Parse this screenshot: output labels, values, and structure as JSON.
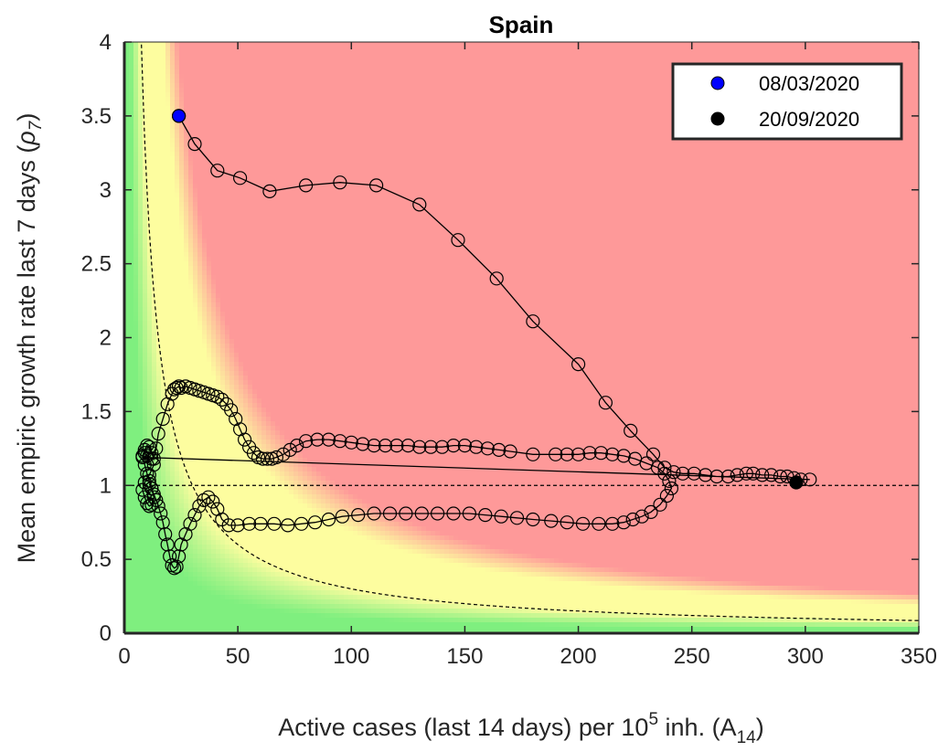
{
  "chart_data": {
    "type": "scatter",
    "title": "Spain",
    "xlabel": {
      "pre": "Active cases (last 14 days) per 10",
      "sup": "5",
      "mid": " inh. (A",
      "sub": "14",
      "post": ")"
    },
    "ylabel": {
      "pre": "Mean empiric growth rate last 7 days (",
      "greek": "ρ",
      "sub": "7",
      "post": ")"
    },
    "xlim": [
      0,
      350
    ],
    "ylim": [
      0,
      4
    ],
    "xticks": [
      "0",
      "50",
      "100",
      "150",
      "200",
      "250",
      "300",
      "350"
    ],
    "yticks": [
      "0",
      "0.5",
      "1",
      "1.5",
      "2",
      "2.5",
      "3",
      "3.5",
      "4"
    ],
    "grid": false,
    "legend_position": "top-right",
    "legend": [
      {
        "label": "08/03/2020",
        "color": "#0000ff"
      },
      {
        "label": "20/09/2020",
        "color": "#000000"
      }
    ],
    "reference_lines": {
      "horizontal_y": 1,
      "hyperbola_k": 30
    },
    "background_zones": {
      "green": "#7fef7f",
      "yellow": "#fdfd9f",
      "red": "#fe9999"
    },
    "series": [
      {
        "x": [
          24,
          31,
          41,
          51,
          64,
          80,
          95,
          111,
          130,
          147,
          164,
          180,
          200,
          212,
          223,
          233,
          238,
          242,
          246,
          251,
          256,
          261,
          266,
          270,
          274,
          277,
          281,
          285,
          289,
          292,
          295,
          298,
          302
        ],
        "y": [
          3.5,
          3.31,
          3.13,
          3.08,
          2.99,
          3.03,
          3.05,
          3.03,
          2.9,
          2.66,
          2.4,
          2.11,
          1.82,
          1.56,
          1.37,
          1.21,
          1.12,
          1.09,
          1.08,
          1.08,
          1.07,
          1.06,
          1.06,
          1.07,
          1.08,
          1.08,
          1.07,
          1.07,
          1.06,
          1.06,
          1.05,
          1.04,
          1.04
        ]
      },
      {
        "x": [
          8,
          9,
          10,
          12,
          13,
          11,
          9,
          8,
          9,
          10,
          11,
          12,
          13,
          12,
          11,
          10,
          9,
          8,
          9,
          10,
          11,
          12,
          13,
          14,
          15,
          17,
          19,
          21,
          22,
          23,
          24,
          25,
          27
        ],
        "y": [
          1.19,
          1.22,
          1.2,
          1.18,
          1.14,
          1.07,
          1.02,
          0.97,
          0.92,
          0.88,
          0.86,
          0.87,
          0.92,
          0.98,
          1.03,
          1.08,
          1.14,
          1.2,
          1.24,
          1.27,
          1.26,
          1.22,
          1.18,
          1.25,
          1.35,
          1.45,
          1.55,
          1.62,
          1.65,
          1.66,
          1.67,
          1.66,
          1.67
        ]
      },
      {
        "x": [
          29,
          31,
          33,
          35,
          37,
          39,
          41,
          43,
          45,
          47,
          49,
          51,
          53,
          55,
          57,
          59,
          61,
          63,
          65,
          67,
          70,
          73,
          76,
          80,
          85,
          90,
          95,
          100,
          105,
          110,
          115,
          120,
          125,
          130,
          135,
          140,
          145,
          150,
          155,
          160,
          165,
          170,
          180,
          190,
          195,
          200,
          205,
          210,
          215,
          220,
          225,
          230,
          235,
          238,
          240,
          241
        ],
        "y": [
          1.66,
          1.65,
          1.64,
          1.63,
          1.62,
          1.61,
          1.6,
          1.58,
          1.55,
          1.51,
          1.45,
          1.38,
          1.31,
          1.26,
          1.22,
          1.19,
          1.18,
          1.18,
          1.18,
          1.19,
          1.21,
          1.24,
          1.27,
          1.3,
          1.31,
          1.31,
          1.3,
          1.29,
          1.28,
          1.27,
          1.27,
          1.27,
          1.27,
          1.26,
          1.26,
          1.26,
          1.27,
          1.27,
          1.26,
          1.25,
          1.24,
          1.23,
          1.21,
          1.21,
          1.21,
          1.21,
          1.22,
          1.22,
          1.21,
          1.2,
          1.18,
          1.15,
          1.12,
          1.08,
          1.03,
          0.98
        ]
      },
      {
        "x": [
          239,
          236,
          232,
          228,
          224,
          220,
          215,
          209,
          202,
          195,
          188,
          180,
          173,
          166,
          159,
          152,
          145,
          138,
          131,
          124,
          117,
          110,
          103,
          96,
          90,
          84,
          78,
          72,
          66,
          60,
          55,
          50,
          46,
          43,
          41,
          39,
          37,
          35,
          33,
          31,
          29
        ],
        "y": [
          0.93,
          0.87,
          0.82,
          0.79,
          0.77,
          0.75,
          0.74,
          0.74,
          0.74,
          0.75,
          0.76,
          0.77,
          0.78,
          0.79,
          0.8,
          0.81,
          0.81,
          0.81,
          0.81,
          0.81,
          0.81,
          0.81,
          0.8,
          0.79,
          0.77,
          0.75,
          0.74,
          0.73,
          0.74,
          0.74,
          0.74,
          0.73,
          0.73,
          0.77,
          0.84,
          0.89,
          0.92,
          0.9,
          0.86,
          0.8,
          0.74
        ]
      },
      {
        "x": [
          27,
          25,
          24,
          23,
          22,
          21,
          20,
          19,
          18,
          17,
          16,
          15,
          14,
          13,
          12,
          11
        ],
        "y": [
          0.67,
          0.6,
          0.52,
          0.45,
          0.44,
          0.46,
          0.52,
          0.6,
          0.67,
          0.75,
          0.81,
          0.86,
          0.9,
          0.94,
          0.98,
          1.01
        ]
      }
    ],
    "start_point": {
      "x": 24,
      "y": 3.5
    },
    "end_point": {
      "x": 296,
      "y": 1.02
    }
  }
}
